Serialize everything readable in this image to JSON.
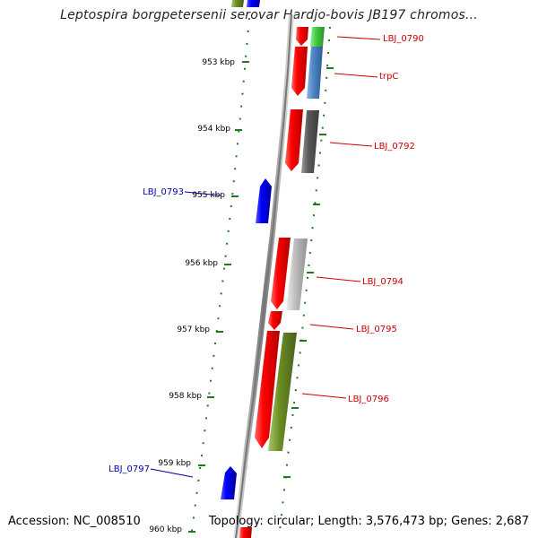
{
  "title": "Leptospira borgpetersenii serovar Hardjo-bovis JB197 chromos...",
  "footer": {
    "accession": "Accession: NC_008510",
    "topology": "Topology: circular; Length: 3,576,473 bp; Genes: 2,687"
  },
  "colors": {
    "axis": "#8a8a8a",
    "tick": "#1f7a1f",
    "plus_gene_label": "#cc0000",
    "minus_gene_label": "#0000aa",
    "forward_cds": "#ff0000",
    "reverse_cds": "#0000ff",
    "cog_green": "#44cc44",
    "cog_steelblue": "#4f86c6",
    "cog_darkgray": "#5a5a5a",
    "cog_lightgray": "#c0c0c0",
    "cog_olive": "#6b8e23"
  },
  "scale": {
    "unit": "kbp",
    "ticks": [
      {
        "label": "953 kbp"
      },
      {
        "label": "954 kbp"
      },
      {
        "label": "955 kbp"
      },
      {
        "label": "956 kbp"
      },
      {
        "label": "957 kbp"
      },
      {
        "label": "958 kbp"
      },
      {
        "label": "959 kbp"
      },
      {
        "label": "960 kbp"
      }
    ]
  },
  "genes": [
    {
      "label": "LBJ_0790",
      "strand": "+",
      "cog_color": "cog_green"
    },
    {
      "label": "trpC",
      "strand": "+",
      "cog_color": "cog_steelblue"
    },
    {
      "label": "LBJ_0792",
      "strand": "+",
      "cog_color": "cog_darkgray"
    },
    {
      "label": "LBJ_0793",
      "strand": "-",
      "cog_color": ""
    },
    {
      "label": "LBJ_0794",
      "strand": "+",
      "cog_color": "cog_lightgray"
    },
    {
      "label": "LBJ_0795",
      "strand": "+",
      "cog_color": ""
    },
    {
      "label": "LBJ_0796",
      "strand": "+",
      "cog_color": "cog_olive"
    },
    {
      "label": "LBJ_0797",
      "strand": "-",
      "cog_color": ""
    }
  ]
}
